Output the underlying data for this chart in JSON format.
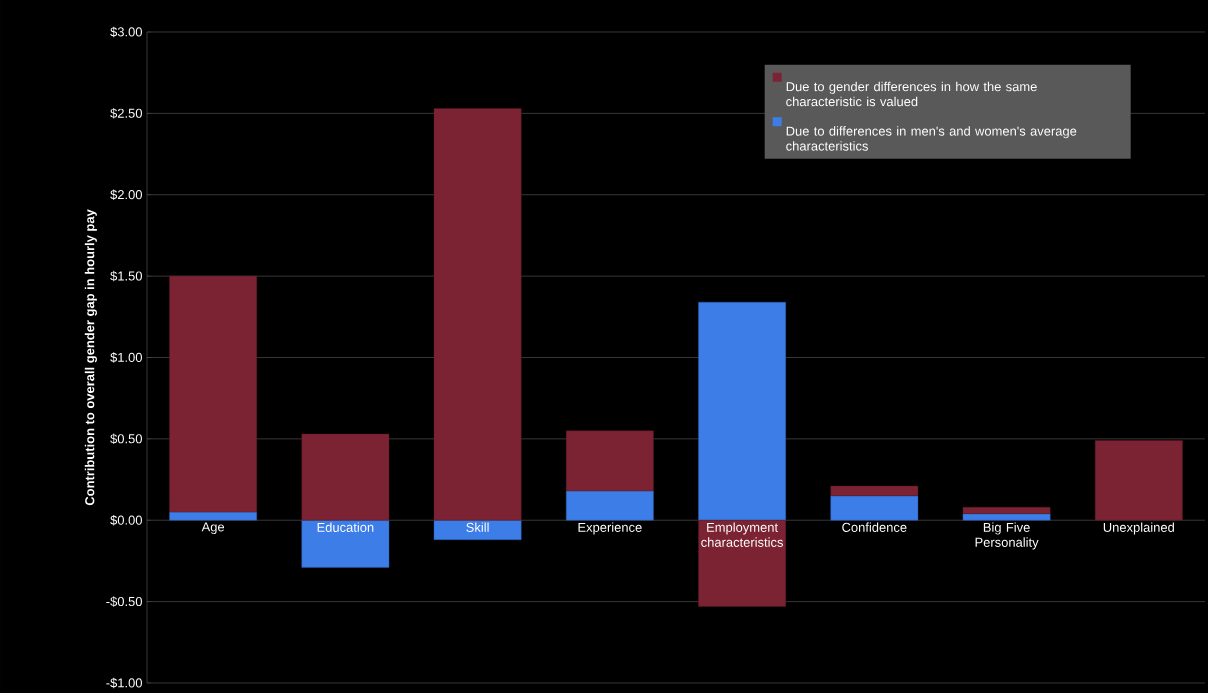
{
  "chart_data": {
    "type": "bar",
    "stacked": true,
    "ylabel": "Contribution to overall gender gap in hourly pay",
    "categories": [
      "Age",
      "Education",
      "Skill",
      "Experience",
      "Employment characteristics",
      "Confidence",
      "Big Five Personality",
      "Unexplained"
    ],
    "series": [
      {
        "name": "Due to differences in men's and women's average characteristics",
        "color": "#3d7de8",
        "values": [
          0.05,
          -0.29,
          -0.12,
          0.18,
          1.34,
          0.15,
          0.04,
          0
        ]
      },
      {
        "name": "Due to gender differences in how the same characteristic is valued",
        "color": "#7b2332",
        "values": [
          1.45,
          0.53,
          2.53,
          0.37,
          -0.53,
          0.06,
          0.04,
          0.49
        ]
      }
    ],
    "ylim": [
      -1,
      3
    ],
    "yticks": [
      {
        "value": -1,
        "label": "-$1.00"
      },
      {
        "value": -0.5,
        "label": "-$0.50"
      },
      {
        "value": 0,
        "label": "$0.00"
      },
      {
        "value": 0.5,
        "label": "$0.50"
      },
      {
        "value": 1,
        "label": "$1.00"
      },
      {
        "value": 1.5,
        "label": "$1.50"
      },
      {
        "value": 2,
        "label": "$2.00"
      },
      {
        "value": 2.5,
        "label": "$2.50"
      },
      {
        "value": 3,
        "label": "$3.00"
      }
    ],
    "grid": "y",
    "legend": "top right"
  }
}
